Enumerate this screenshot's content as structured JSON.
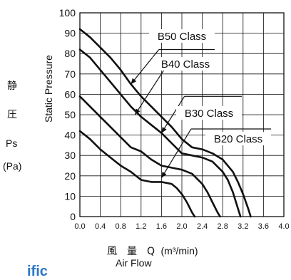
{
  "chart_data": {
    "type": "line",
    "xlabel_jp": "風　量　Q",
    "xlabel_unit": "(m³/min)",
    "xlabel_en": "Air Flow",
    "ylabel": "Static Pressure",
    "ylabel_jp": [
      "静",
      "圧",
      "Ps",
      "(Pa)"
    ],
    "xlim": [
      0,
      4.0
    ],
    "ylim": [
      0,
      100
    ],
    "x_ticks": [
      "0.0",
      "0.4",
      "0.8",
      "1.2",
      "1.6",
      "2.0",
      "2.4",
      "2.8",
      "3.2",
      "3.6",
      "4.0"
    ],
    "y_ticks": [
      "0",
      "10",
      "20",
      "30",
      "40",
      "50",
      "60",
      "70",
      "80",
      "90",
      "100"
    ],
    "grid": true,
    "series": [
      {
        "name": "B50 Class",
        "label": "B50 Class",
        "x": [
          0.0,
          0.2,
          0.4,
          0.6,
          0.8,
          1.0,
          1.2,
          1.4,
          1.6,
          1.8,
          2.0,
          2.2,
          2.4,
          2.6,
          2.8,
          3.0,
          3.1,
          3.2,
          3.3,
          3.35
        ],
        "y": [
          92,
          88,
          83,
          78,
          72,
          65,
          59,
          54,
          49,
          44,
          38,
          34,
          33,
          31,
          28,
          22,
          17,
          11,
          4,
          0
        ]
      },
      {
        "name": "B40 Class",
        "label": "B40 Class",
        "x": [
          0.0,
          0.2,
          0.4,
          0.6,
          0.8,
          1.0,
          1.2,
          1.4,
          1.6,
          1.8,
          2.0,
          2.2,
          2.4,
          2.6,
          2.8,
          2.9,
          3.0,
          3.1,
          3.15
        ],
        "y": [
          82,
          78,
          72,
          66,
          60,
          54,
          49,
          45,
          41,
          36,
          31,
          30,
          29,
          27,
          22,
          18,
          12,
          4,
          0
        ]
      },
      {
        "name": "B30 Class",
        "label": "B30 Class",
        "x": [
          0.0,
          0.2,
          0.4,
          0.6,
          0.8,
          1.0,
          1.2,
          1.4,
          1.6,
          1.8,
          2.0,
          2.2,
          2.4,
          2.5,
          2.6,
          2.7,
          2.75
        ],
        "y": [
          59,
          54,
          49,
          44,
          39,
          34,
          32,
          28,
          25,
          24,
          23,
          21,
          16,
          12,
          7,
          2,
          0
        ]
      },
      {
        "name": "B20 Class",
        "label": "B20 Class",
        "x": [
          0.0,
          0.2,
          0.4,
          0.6,
          0.8,
          1.0,
          1.2,
          1.4,
          1.6,
          1.8,
          1.9,
          2.0,
          2.1,
          2.2,
          2.25
        ],
        "y": [
          42,
          38,
          33,
          29,
          25,
          22,
          18,
          17,
          17,
          16,
          14,
          11,
          7,
          2,
          0
        ]
      }
    ],
    "annotations": [
      {
        "text": "B50 Class",
        "series": "B50 Class"
      },
      {
        "text": "B40 Class",
        "series": "B40 Class"
      },
      {
        "text": "B30 Class",
        "series": "B30 Class"
      },
      {
        "text": "B20 Class",
        "series": "B20 Class"
      }
    ]
  },
  "artifact_text": "ific"
}
